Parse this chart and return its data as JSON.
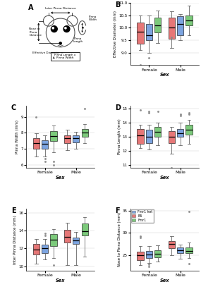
{
  "colors": {
    "Fmr1 het": "#5B8DD9",
    "B6": "#E05555",
    "Fmr1": "#5BBD5A"
  },
  "color_order": [
    "B6",
    "Fmr1 het",
    "Fmr1"
  ],
  "panel_B": {
    "ylabel": "Effective Diameter (mm)",
    "ylim": [
      8.5,
      11.0
    ],
    "yticks": [
      9.0,
      9.5,
      10.0,
      10.5,
      11.0
    ],
    "data": {
      "B6": {
        "Female": {
          "q1": 9.35,
          "med": 9.85,
          "q3": 10.2,
          "wlo": 9.1,
          "whi": 10.5,
          "fly": [
            8.5
          ]
        },
        "Male": {
          "q1": 9.55,
          "med": 10.0,
          "q3": 10.4,
          "wlo": 9.2,
          "whi": 10.65,
          "fly": [
            9.6
          ]
        }
      },
      "Fmr1 het": {
        "Female": {
          "q1": 9.5,
          "med": 9.7,
          "q3": 10.15,
          "wlo": 9.0,
          "whi": 10.5,
          "fly": [
            8.8
          ]
        },
        "Male": {
          "q1": 9.7,
          "med": 10.15,
          "q3": 10.45,
          "wlo": 9.5,
          "whi": 10.55,
          "fly": []
        }
      },
      "Fmr1": {
        "Female": {
          "q1": 9.8,
          "med": 10.1,
          "q3": 10.4,
          "wlo": 9.4,
          "whi": 10.7,
          "fly": []
        },
        "Male": {
          "q1": 10.1,
          "med": 10.3,
          "q3": 10.5,
          "wlo": 9.7,
          "whi": 10.9,
          "fly": []
        }
      }
    }
  },
  "panel_C": {
    "ylabel": "Pinna Width (mm)",
    "ylim": [
      5.8,
      9.7
    ],
    "yticks": [
      6,
      7,
      8,
      9
    ],
    "data": {
      "B6": {
        "Female": {
          "q1": 7.0,
          "med": 7.35,
          "q3": 7.65,
          "wlo": 6.5,
          "whi": 7.95,
          "fly": [
            9.0
          ]
        },
        "Male": {
          "q1": 7.35,
          "med": 7.65,
          "q3": 7.85,
          "wlo": 6.9,
          "whi": 8.2,
          "fly": []
        }
      },
      "Fmr1 het": {
        "Female": {
          "q1": 7.0,
          "med": 7.3,
          "q3": 7.55,
          "wlo": 6.5,
          "whi": 7.85,
          "fly": [
            6.2,
            6.4
          ]
        },
        "Male": {
          "q1": 7.4,
          "med": 7.65,
          "q3": 7.85,
          "wlo": 7.0,
          "whi": 8.05,
          "fly": []
        }
      },
      "Fmr1": {
        "Female": {
          "q1": 7.5,
          "med": 7.8,
          "q3": 8.1,
          "wlo": 6.8,
          "whi": 8.45,
          "fly": [
            6.0,
            6.2
          ]
        },
        "Male": {
          "q1": 7.75,
          "med": 8.0,
          "q3": 8.25,
          "wlo": 7.35,
          "whi": 8.55,
          "fly": [
            9.5
          ]
        }
      }
    }
  },
  "panel_D": {
    "ylabel": "Pinna Length (mm)",
    "ylim": [
      10.8,
      15.2
    ],
    "yticks": [
      11,
      12,
      13,
      14,
      15
    ],
    "data": {
      "B6": {
        "Female": {
          "q1": 12.5,
          "med": 13.1,
          "q3": 13.55,
          "wlo": 12.2,
          "whi": 13.85,
          "fly": [
            14.9
          ]
        },
        "Male": {
          "q1": 12.55,
          "med": 13.0,
          "q3": 13.4,
          "wlo": 11.8,
          "whi": 13.7,
          "fly": [
            10.8
          ]
        }
      },
      "Fmr1 het": {
        "Female": {
          "q1": 12.55,
          "med": 13.0,
          "q3": 13.5,
          "wlo": 12.1,
          "whi": 13.85,
          "fly": [
            14.7,
            14.8
          ]
        },
        "Male": {
          "q1": 13.0,
          "med": 13.25,
          "q3": 13.55,
          "wlo": 12.4,
          "whi": 14.0,
          "fly": [
            14.5,
            14.6
          ]
        }
      },
      "Fmr1": {
        "Female": {
          "q1": 13.0,
          "med": 13.35,
          "q3": 13.7,
          "wlo": 12.4,
          "whi": 14.0,
          "fly": [
            14.8
          ]
        },
        "Male": {
          "q1": 13.15,
          "med": 13.5,
          "q3": 13.85,
          "wlo": 12.5,
          "whi": 14.2,
          "fly": [
            14.6,
            14.7
          ]
        }
      }
    }
  },
  "panel_E": {
    "ylabel": "Inter Pinna Distance (mm)",
    "ylim": [
      9.5,
      16.5
    ],
    "yticks": [
      10,
      12,
      14,
      16
    ],
    "data": {
      "B6": {
        "Female": {
          "q1": 11.3,
          "med": 11.9,
          "q3": 12.5,
          "wlo": 10.3,
          "whi": 13.1,
          "fly": []
        },
        "Male": {
          "q1": 12.7,
          "med": 13.3,
          "q3": 14.1,
          "wlo": 10.1,
          "whi": 14.9,
          "fly": []
        }
      },
      "Fmr1 het": {
        "Female": {
          "q1": 11.5,
          "med": 12.05,
          "q3": 12.4,
          "wlo": 10.8,
          "whi": 13.1,
          "fly": [
            13.7,
            13.5
          ]
        },
        "Male": {
          "q1": 12.5,
          "med": 12.9,
          "q3": 13.25,
          "wlo": 10.1,
          "whi": 13.85,
          "fly": []
        }
      },
      "Fmr1": {
        "Female": {
          "q1": 12.3,
          "med": 13.0,
          "q3": 13.6,
          "wlo": 10.9,
          "whi": 14.2,
          "fly": [
            10.1
          ]
        },
        "Male": {
          "q1": 13.5,
          "med": 13.9,
          "q3": 14.8,
          "wlo": 11.1,
          "whi": 15.5,
          "fly": []
        }
      }
    }
  },
  "panel_F": {
    "ylabel": "Nose to Pinna Distance (mm)",
    "ylim": [
      21.5,
      35.5
    ],
    "yticks": [
      25,
      30,
      35
    ],
    "data": {
      "B6": {
        "Female": {
          "q1": 23.8,
          "med": 25.0,
          "q3": 25.7,
          "wlo": 22.8,
          "whi": 27.0,
          "fly": [
            29.0,
            29.3
          ]
        },
        "Male": {
          "q1": 26.5,
          "med": 27.5,
          "q3": 28.2,
          "wlo": 25.0,
          "whi": 29.2,
          "fly": []
        }
      },
      "Fmr1 het": {
        "Female": {
          "q1": 24.3,
          "med": 25.1,
          "q3": 25.9,
          "wlo": 23.3,
          "whi": 27.0,
          "fly": [
            22.5,
            23.0
          ]
        },
        "Male": {
          "q1": 25.5,
          "med": 26.1,
          "q3": 26.7,
          "wlo": 24.2,
          "whi": 27.3,
          "fly": []
        }
      },
      "Fmr1": {
        "Female": {
          "q1": 24.5,
          "med": 25.3,
          "q3": 26.1,
          "wlo": 23.5,
          "whi": 27.2,
          "fly": []
        },
        "Male": {
          "q1": 25.5,
          "med": 26.0,
          "q3": 26.8,
          "wlo": 24.3,
          "whi": 27.8,
          "fly": [
            34.8,
            23.1
          ]
        }
      }
    }
  },
  "legend_labels": [
    "Fmr1 het",
    "B6",
    "Fmr1"
  ],
  "xlabel": "Sex",
  "groups": [
    "Female",
    "Male"
  ]
}
